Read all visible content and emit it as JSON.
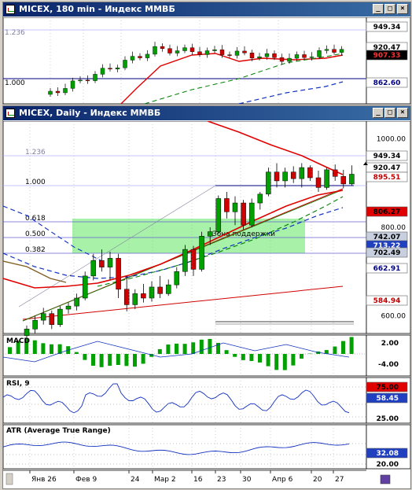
{
  "top_window": {
    "title": "MICEX, 180 min - Индекс ММВБ",
    "fib_labels": [
      "1.236",
      "1.000"
    ],
    "price_tags": [
      {
        "value": "949.34",
        "bg": "#ffffff",
        "fg": "#000000"
      },
      {
        "value": "920.47",
        "bg": "#ffffff",
        "fg": "#000000"
      },
      {
        "value": "907.33",
        "bg": "#000000",
        "fg": "#ff3030"
      },
      {
        "value": "862.60",
        "bg": "#ffffff",
        "fg": "#000080"
      }
    ]
  },
  "main_window": {
    "title": "MICEX, Daily - Индекс ММВБ",
    "fib_labels": [
      "1.236",
      "1.000",
      "0.618",
      "0.500",
      "0.382"
    ],
    "zone_label": "Зона поддержки",
    "price_axis": [
      "1000.00",
      "800.00",
      "600.00"
    ],
    "price_tags": [
      {
        "value": "949.34",
        "bg": "#ffffff",
        "fg": "#000000"
      },
      {
        "value": "920.47",
        "bg": "#ffffff",
        "fg": "#000000"
      },
      {
        "value": "895.51",
        "bg": "#ffffff",
        "fg": "#c00000"
      },
      {
        "value": "806.27",
        "bg": "#e00000",
        "fg": "#000000"
      },
      {
        "value": "742.07",
        "bg": "#c8d0e0",
        "fg": "#000000"
      },
      {
        "value": "713.22",
        "bg": "#2040c0",
        "fg": "#ffffff"
      },
      {
        "value": "702.49",
        "bg": "#c8d0e0",
        "fg": "#000000"
      },
      {
        "value": "662.91",
        "bg": "#ffffff",
        "fg": "#000080"
      },
      {
        "value": "584.94",
        "bg": "#ffffff",
        "fg": "#c00000"
      }
    ],
    "x_axis": [
      "Янв 26",
      "Фев 9",
      "24",
      "Мар 2",
      "16",
      "23",
      "30",
      "Апр 6",
      "20",
      "27"
    ]
  },
  "chart_data": [
    {
      "type": "candlestick",
      "title": "MICEX, Daily - Индекс ММВБ",
      "ylim": [
        560,
        1040
      ],
      "ohlc": [
        [
          555,
          578,
          540,
          570
        ],
        [
          570,
          600,
          560,
          590
        ],
        [
          590,
          618,
          580,
          605
        ],
        [
          605,
          612,
          570,
          580
        ],
        [
          580,
          622,
          575,
          615
        ],
        [
          615,
          630,
          605,
          622
        ],
        [
          622,
          650,
          612,
          640
        ],
        [
          640,
          700,
          635,
          690
        ],
        [
          690,
          740,
          680,
          725
        ],
        [
          725,
          750,
          700,
          710
        ],
        [
          710,
          745,
          680,
          730
        ],
        [
          730,
          740,
          640,
          660
        ],
        [
          660,
          690,
          610,
          625
        ],
        [
          625,
          660,
          615,
          650
        ],
        [
          650,
          672,
          630,
          640
        ],
        [
          640,
          678,
          632,
          665
        ],
        [
          665,
          690,
          640,
          650
        ],
        [
          650,
          682,
          645,
          670
        ],
        [
          670,
          710,
          662,
          700
        ],
        [
          700,
          760,
          690,
          750
        ],
        [
          750,
          758,
          690,
          705
        ],
        [
          705,
          790,
          700,
          780
        ],
        [
          780,
          800,
          760,
          790
        ],
        [
          790,
          872,
          785,
          865
        ],
        [
          865,
          880,
          820,
          835
        ],
        [
          835,
          870,
          805,
          855
        ],
        [
          855,
          862,
          795,
          805
        ],
        [
          805,
          865,
          800,
          855
        ],
        [
          855,
          880,
          840,
          875
        ],
        [
          875,
          935,
          870,
          925
        ],
        [
          925,
          945,
          890,
          905
        ],
        [
          905,
          935,
          890,
          925
        ],
        [
          925,
          938,
          900,
          910
        ],
        [
          910,
          945,
          890,
          935
        ],
        [
          935,
          940,
          905,
          912
        ],
        [
          912,
          928,
          880,
          890
        ],
        [
          890,
          935,
          885,
          930
        ],
        [
          930,
          942,
          905,
          915
        ],
        [
          915,
          930,
          888,
          898
        ],
        [
          898,
          940,
          895,
          920
        ]
      ]
    },
    {
      "type": "bar",
      "title": "MACD",
      "ticks": [
        "2.00",
        "-4.00"
      ]
    },
    {
      "type": "line",
      "title": "RSI, 9",
      "ticks": [
        "75.00",
        "58.45",
        "25.00"
      ]
    },
    {
      "type": "line",
      "title": "ATR (Average True Range)",
      "ticks": [
        "32.08",
        "20.00"
      ]
    }
  ]
}
